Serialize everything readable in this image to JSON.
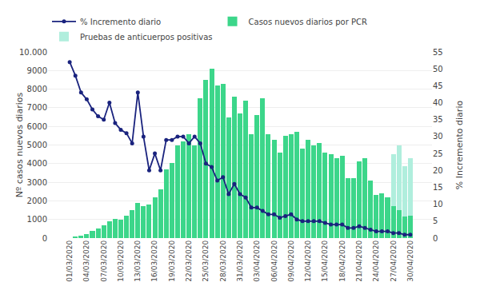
{
  "chart_data": {
    "type": "bar",
    "stacked": true,
    "categories": [
      "01/03/2020",
      null,
      null,
      "04/03/2020",
      null,
      null,
      "07/03/2020",
      null,
      null,
      "10/03/2020",
      null,
      null,
      "13/03/2020",
      null,
      null,
      "16/03/2020",
      null,
      null,
      "19/03/2020",
      null,
      null,
      "22/03/2020",
      null,
      null,
      "25/03/2020",
      null,
      null,
      "28/03/2020",
      null,
      null,
      "31/03/2020",
      null,
      null,
      "03/04/2020",
      null,
      null,
      "06/04/2020",
      null,
      null,
      "09/04/2020",
      null,
      null,
      "12/04/2020",
      null,
      null,
      "15/04/2020",
      null,
      null,
      "18/04/2020",
      null,
      null,
      "21/04/2020",
      null,
      null,
      "24/04/2020",
      null,
      null,
      "27/04/2020",
      null,
      null,
      "30/04/2020"
    ],
    "series": [
      {
        "name": "% Incremento diario",
        "type": "line",
        "axis": "y2",
        "color": "#1a237e",
        "marker": "circle",
        "values": [
          52,
          48,
          43,
          41,
          38,
          36,
          35,
          40,
          34,
          32,
          31,
          28,
          43,
          30,
          20,
          25,
          20,
          29,
          29,
          30,
          30,
          28,
          30,
          28,
          22,
          21,
          17,
          18,
          13,
          16,
          13,
          12,
          9,
          9,
          8,
          7,
          7,
          6,
          6.5,
          7,
          5.5,
          5,
          5,
          5,
          5,
          4.5,
          4,
          4,
          4,
          3,
          3,
          3.5,
          3,
          2.5,
          2,
          2,
          2,
          1.5,
          1.5,
          1,
          1
        ]
      },
      {
        "name": "Casos nuevos diarios por PCR",
        "type": "bar",
        "color": "#3cd68a",
        "values": [
          0,
          60,
          150,
          220,
          400,
          500,
          700,
          900,
          1050,
          1000,
          1200,
          1500,
          1900,
          1700,
          1800,
          2200,
          2600,
          3700,
          4050,
          5000,
          5200,
          5600,
          5000,
          7500,
          8500,
          9100,
          8200,
          8300,
          6500,
          7600,
          6700,
          7400,
          5600,
          6600,
          7500,
          5600,
          5300,
          4600,
          5500,
          5600,
          5700,
          4800,
          5300,
          5000,
          5100,
          4600,
          4500,
          4300,
          4400,
          3200,
          3200,
          4100,
          4300,
          3100,
          2300,
          2400,
          2200,
          1700,
          1500,
          1150,
          1200
        ]
      },
      {
        "name": "Pruebas de anticuerpos positivas",
        "type": "bar",
        "color": "#b0eedd",
        "values": [
          0,
          0,
          0,
          0,
          0,
          0,
          0,
          0,
          0,
          0,
          0,
          0,
          0,
          0,
          0,
          0,
          0,
          0,
          0,
          0,
          0,
          0,
          0,
          0,
          0,
          0,
          0,
          0,
          0,
          0,
          0,
          0,
          0,
          0,
          0,
          0,
          0,
          0,
          0,
          0,
          0,
          0,
          0,
          0,
          0,
          0,
          0,
          0,
          0,
          0,
          0,
          0,
          0,
          0,
          0,
          0,
          0,
          2800,
          3500,
          2700,
          3100
        ]
      }
    ],
    "y_label": "Nº casos nuevos diarios",
    "y2_label": "% Incremento diario",
    "ylim": [
      0,
      10000
    ],
    "yticks": [
      0,
      1000,
      2000,
      3000,
      4000,
      5000,
      6000,
      7000,
      8000,
      9000,
      {
        "value": 10000,
        "label": "10.000"
      }
    ],
    "y2lim": [
      0,
      55
    ],
    "y2ticks": [
      0,
      5,
      10,
      15,
      20,
      25,
      30,
      35,
      40,
      45,
      50,
      55
    ],
    "grid": true,
    "legend": "upper left"
  }
}
